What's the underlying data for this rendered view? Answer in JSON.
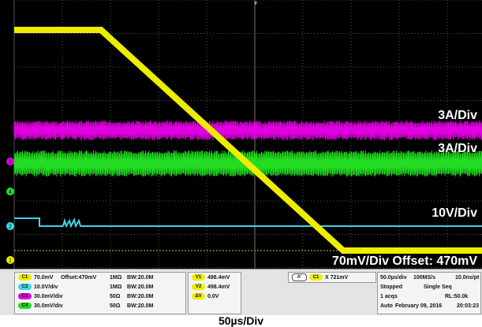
{
  "screen": {
    "labels": [
      "3A/Div",
      "3A/Div",
      "10V/Div",
      "70mV/Div Offset: 470mV"
    ],
    "markers": [
      "3",
      "4",
      "2",
      "1"
    ]
  },
  "readout": {
    "channels": [
      {
        "id": "C1",
        "scale": "70.0mV",
        "offset": "Offset:470mV",
        "impedance": "1MΩ",
        "bw": "BW:20.0M"
      },
      {
        "id": "C2",
        "scale": "10.0V/div",
        "impedance": "1MΩ",
        "bw": "BW:20.0M"
      },
      {
        "id": "C3",
        "scale": "30.0mV/div",
        "impedance": "50Ω",
        "bw": "BW:20.0M"
      },
      {
        "id": "C4",
        "scale": "30.0mV/div",
        "impedance": "50Ω",
        "bw": "BW:20.0M"
      }
    ],
    "cursors": [
      {
        "id": "V1",
        "value": "498.4mV"
      },
      {
        "id": "V2",
        "value": "498.4mV"
      },
      {
        "id": "ΔV",
        "value": "0.0V"
      }
    ],
    "trigger": {
      "id": "A'",
      "source": "C1",
      "level": "721mV"
    },
    "timebase": [
      [
        "50.0µs/div",
        "100MS/s",
        "10.0ns/pt"
      ],
      [
        "Stopped",
        "Single Seq"
      ],
      [
        "1 acqs",
        "RL:50.0k"
      ],
      [
        "Auto",
        "February 09, 2016",
        "20:03:23"
      ]
    ]
  },
  "caption": "50µs/Div"
}
